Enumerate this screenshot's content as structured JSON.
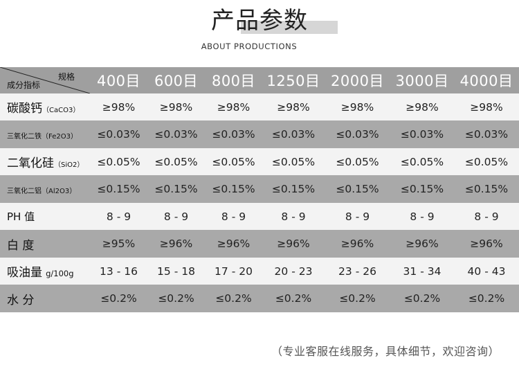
{
  "header": {
    "title": "产品参数",
    "subtitle": "ABOUT PRODUCTIONS"
  },
  "table": {
    "corner_top": "规格",
    "corner_bottom": "成分指标",
    "columns": [
      "400目",
      "600目",
      "800目",
      "1250目",
      "2000目",
      "3000目",
      "4000目"
    ],
    "rows": [
      {
        "label": "碳酸钙",
        "label_suffix": "（CaCO3）",
        "values": [
          "≥98%",
          "≥98%",
          "≥98%",
          "≥98%",
          "≥98%",
          "≥98%",
          "≥98%"
        ]
      },
      {
        "label": "三氧化二铁",
        "label_suffix": "（Fe2O3）",
        "values": [
          "≤0.03%",
          "≤0.03%",
          "≤0.03%",
          "≤0.03%",
          "≤0.03%",
          "≤0.03%",
          "≤0.03%"
        ]
      },
      {
        "label": "二氧化硅",
        "label_suffix": "（SiO2）",
        "values": [
          "≤0.05%",
          "≤0.05%",
          "≤0.05%",
          "≤0.05%",
          "≤0.05%",
          "≤0.05%",
          "≤0.05%"
        ]
      },
      {
        "label": "三氧化二铝",
        "label_suffix": "（Al2O3）",
        "values": [
          "≤0.15%",
          "≤0.15%",
          "≤0.15%",
          "≤0.15%",
          "≤0.15%",
          "≤0.15%",
          "≤0.15%"
        ]
      },
      {
        "label": "PH 值",
        "label_suffix": "",
        "values": [
          "8 - 9",
          "8 - 9",
          "8 - 9",
          "8 - 9",
          "8 - 9",
          "8 - 9",
          "8 - 9"
        ]
      },
      {
        "label": "白 度",
        "label_suffix": "",
        "values": [
          "≥95%",
          "≥96%",
          "≥96%",
          "≥96%",
          "≥96%",
          "≥96%",
          "≥96%"
        ]
      },
      {
        "label": "吸油量",
        "label_suffix": "g/100g",
        "values": [
          "13 - 16",
          "15 - 18",
          "17 - 20",
          "20 - 23",
          "23 - 26",
          "31 - 34",
          "40 - 43"
        ]
      },
      {
        "label": "水 分",
        "label_suffix": "",
        "values": [
          "≤0.2%",
          "≤0.2%",
          "≤0.2%",
          "≤0.2%",
          "≤0.2%",
          "≤0.2%",
          "≤0.2%"
        ]
      }
    ]
  },
  "footer": {
    "note": "（专业客服在线服务，具体细节，欢迎咨询）"
  },
  "colors": {
    "header_row": "#9f9f9f",
    "dark_row": "#a9a9a9",
    "light_row": "#f3f3f3",
    "title_highlight": "#d6d6d6"
  }
}
